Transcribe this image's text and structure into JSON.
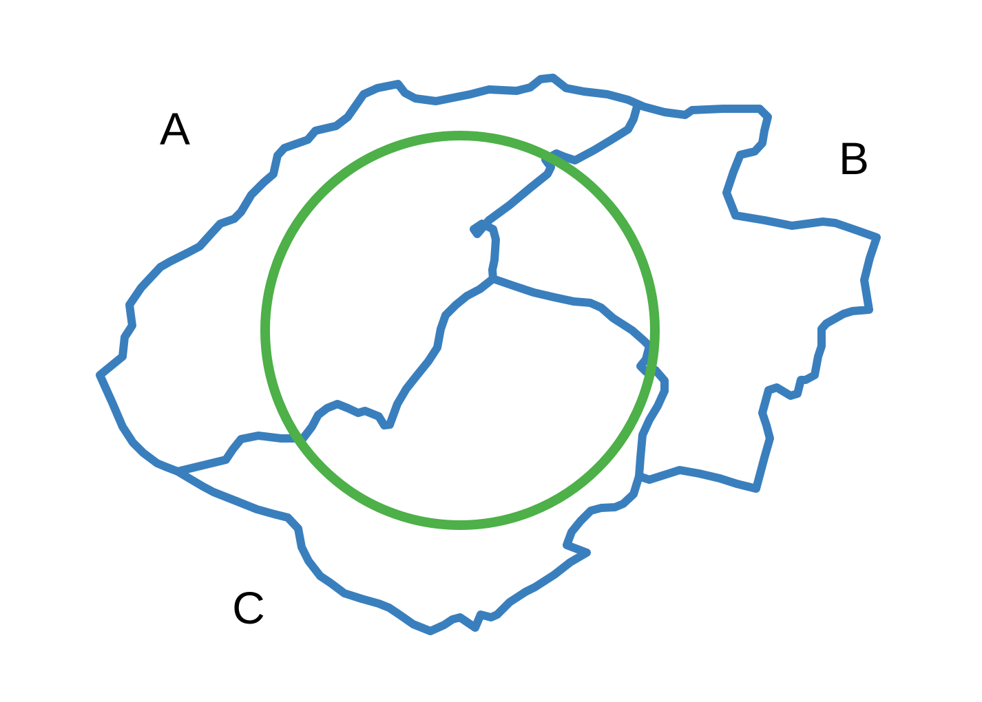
{
  "map": {
    "regions": [
      {
        "id": "A",
        "label": "A"
      },
      {
        "id": "B",
        "label": "B"
      },
      {
        "id": "C",
        "label": "C"
      }
    ],
    "colors": {
      "border": "#3a7fbd",
      "circle": "#4db048",
      "label": "#000000",
      "background": "#ffffff"
    }
  }
}
